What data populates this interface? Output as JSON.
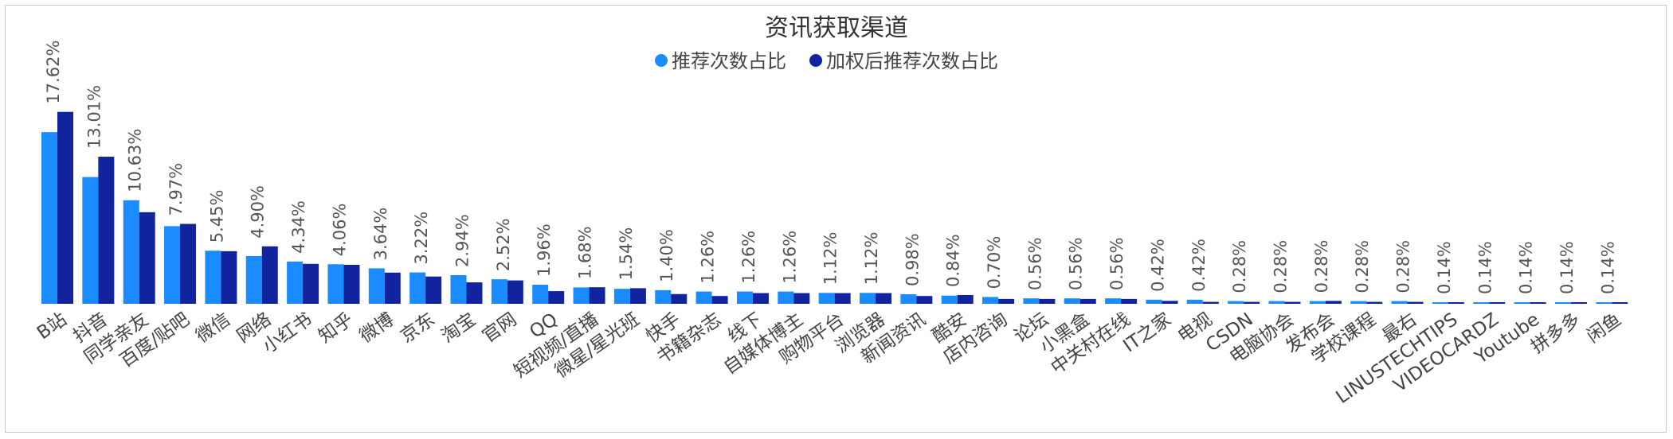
{
  "chart_data": {
    "type": "bar",
    "title": "资讯获取渠道",
    "legend_position": "top-center",
    "grid": false,
    "xlabel": "",
    "ylabel": "",
    "ylim": [
      0,
      20
    ],
    "categories": [
      "B站",
      "抖音",
      "同学亲友",
      "百度/贴吧",
      "微信",
      "网络",
      "小红书",
      "知乎",
      "微博",
      "京东",
      "淘宝",
      "官网",
      "QQ",
      "短视频/直播",
      "微星/星光班",
      "快手",
      "书籍杂志",
      "线下",
      "自媒体博主",
      "购物平台",
      "浏览器",
      "新闻资讯",
      "酷安",
      "店内咨询",
      "论坛",
      "小黑盒",
      "中关村在线",
      "IT之家",
      "电视",
      "CSDN",
      "电脑协会",
      "发布会",
      "学校课程",
      "最右",
      "LINUSTECHTIPS",
      "VIDEOCARDZ",
      "Youtube",
      "拼多多",
      "闲鱼"
    ],
    "value_labels": [
      "17.62%",
      "13.01%",
      "10.63%",
      "7.97%",
      "5.45%",
      "4.90%",
      "4.34%",
      "4.06%",
      "3.64%",
      "3.22%",
      "2.94%",
      "2.52%",
      "1.96%",
      "1.68%",
      "1.54%",
      "1.40%",
      "1.26%",
      "1.26%",
      "1.26%",
      "1.12%",
      "1.12%",
      "0.98%",
      "0.84%",
      "0.70%",
      "0.56%",
      "0.56%",
      "0.56%",
      "0.42%",
      "0.42%",
      "0.28%",
      "0.28%",
      "0.28%",
      "0.28%",
      "0.28%",
      "0.14%",
      "0.14%",
      "0.14%",
      "0.14%",
      "0.14%"
    ],
    "series": [
      {
        "name": "推荐次数占比",
        "color": "#1a8cff",
        "values": [
          17.62,
          13.01,
          10.63,
          7.97,
          5.45,
          4.9,
          4.34,
          4.06,
          3.64,
          3.22,
          2.94,
          2.52,
          1.96,
          1.68,
          1.54,
          1.4,
          1.26,
          1.26,
          1.26,
          1.12,
          1.12,
          0.98,
          0.84,
          0.7,
          0.56,
          0.56,
          0.56,
          0.42,
          0.42,
          0.28,
          0.28,
          0.28,
          0.28,
          0.28,
          0.14,
          0.14,
          0.14,
          0.14,
          0.14
        ]
      },
      {
        "name": "加权后推荐次数占比",
        "color": "#12239e",
        "values": [
          19.7,
          15.1,
          9.4,
          8.2,
          5.4,
          5.9,
          4.1,
          4.0,
          3.2,
          2.8,
          2.2,
          2.4,
          1.3,
          1.7,
          1.6,
          1.0,
          0.8,
          1.1,
          1.1,
          1.1,
          1.1,
          0.8,
          0.9,
          0.5,
          0.5,
          0.5,
          0.5,
          0.3,
          0.2,
          0.2,
          0.2,
          0.3,
          0.2,
          0.2,
          0.1,
          0.1,
          0.1,
          0.1,
          0.1
        ]
      }
    ]
  }
}
